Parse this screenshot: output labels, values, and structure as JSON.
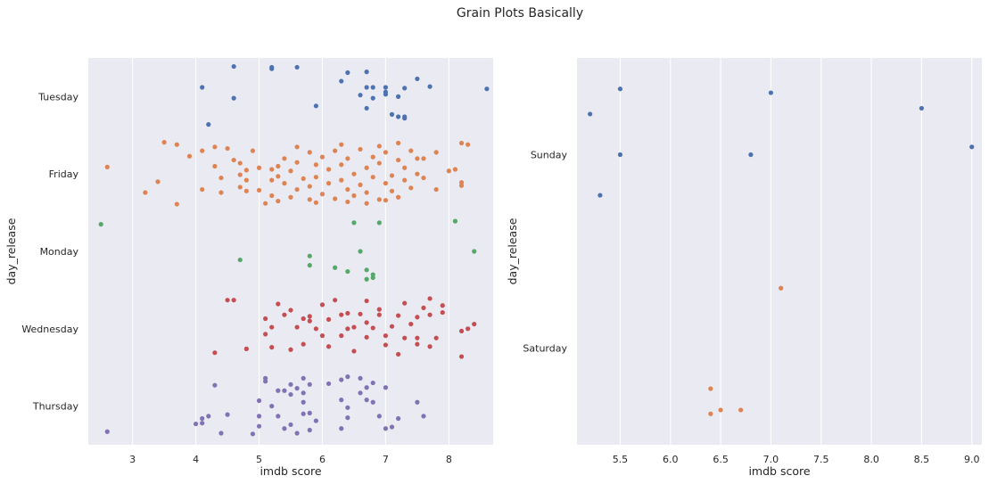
{
  "title": "Grain Plots Basically",
  "colors": {
    "background": "#ffffff",
    "panel": "#eaeaf2",
    "grid": "#ffffff",
    "text": "#262626",
    "blue": "#4c72b0",
    "orange": "#dd8452",
    "green": "#55a868",
    "red": "#c44e52",
    "purple": "#8172b3"
  },
  "chart_data": [
    {
      "type": "scatter",
      "style": "strip plot (horizontal, jittered)",
      "xlabel": "imdb score",
      "ylabel": "day_release",
      "xlim": [
        2.3,
        8.7
      ],
      "x_ticks": [
        3,
        4,
        5,
        6,
        7,
        8
      ],
      "categories": [
        "Tuesday",
        "Friday",
        "Monday",
        "Wednesday",
        "Thursday"
      ],
      "grid": "vertical",
      "series": [
        {
          "category": "Tuesday",
          "color": "#4c72b0",
          "points": [
            [
              4.6,
              -0.39
            ],
            [
              5.2,
              -0.38
            ],
            [
              5.2,
              -0.36
            ],
            [
              5.6,
              -0.38
            ],
            [
              6.4,
              -0.31
            ],
            [
              6.7,
              -0.32
            ],
            [
              7.5,
              -0.23
            ],
            [
              4.1,
              -0.12
            ],
            [
              6.3,
              -0.2
            ],
            [
              6.7,
              -0.12
            ],
            [
              6.8,
              -0.12
            ],
            [
              7.0,
              -0.12
            ],
            [
              7.3,
              -0.11
            ],
            [
              7.7,
              -0.13
            ],
            [
              8.6,
              -0.1
            ],
            [
              4.6,
              0.02
            ],
            [
              6.6,
              -0.02
            ],
            [
              6.8,
              0.02
            ],
            [
              7.0,
              -0.03
            ],
            [
              7.0,
              -0.06
            ],
            [
              7.2,
              0.0
            ],
            [
              5.9,
              0.12
            ],
            [
              6.7,
              0.15
            ],
            [
              7.1,
              0.23
            ],
            [
              7.2,
              0.26
            ],
            [
              7.3,
              0.26
            ],
            [
              7.3,
              0.28
            ],
            [
              4.2,
              0.36
            ]
          ]
        },
        {
          "category": "Friday",
          "color": "#dd8452",
          "points": [
            [
              3.5,
              -0.41
            ],
            [
              3.7,
              -0.38
            ],
            [
              3.9,
              -0.23
            ],
            [
              2.6,
              -0.09
            ],
            [
              4.1,
              -0.3
            ],
            [
              4.3,
              -0.35
            ],
            [
              4.5,
              -0.33
            ],
            [
              4.6,
              -0.18
            ],
            [
              4.7,
              -0.14
            ],
            [
              4.3,
              -0.1
            ],
            [
              4.7,
              0.01
            ],
            [
              4.4,
              0.05
            ],
            [
              4.8,
              0.08
            ],
            [
              4.1,
              0.2
            ],
            [
              4.4,
              0.24
            ],
            [
              4.7,
              0.17
            ],
            [
              4.8,
              0.22
            ],
            [
              4.8,
              -0.05
            ],
            [
              3.4,
              0.1
            ],
            [
              3.2,
              0.24
            ],
            [
              3.7,
              0.39
            ],
            [
              4.9,
              -0.3
            ],
            [
              5.0,
              -0.08
            ],
            [
              5.0,
              0.21
            ],
            [
              5.1,
              0.38
            ],
            [
              5.2,
              -0.06
            ],
            [
              5.2,
              0.08
            ],
            [
              5.2,
              0.28
            ],
            [
              5.3,
              -0.1
            ],
            [
              5.3,
              0.03
            ],
            [
              5.3,
              0.35
            ],
            [
              8.2,
              -0.4
            ],
            [
              8.3,
              -0.38
            ],
            [
              8.1,
              -0.06
            ],
            [
              8.0,
              -0.04
            ],
            [
              7.8,
              -0.28
            ],
            [
              7.8,
              0.2
            ],
            [
              8.2,
              0.11
            ],
            [
              8.2,
              0.15
            ],
            [
              7.6,
              0.05
            ],
            [
              7.6,
              -0.2
            ],
            [
              5.4,
              0.12
            ],
            [
              5.4,
              -0.2
            ],
            [
              5.5,
              0.3
            ],
            [
              5.5,
              -0.04
            ],
            [
              5.6,
              0.2
            ],
            [
              5.6,
              -0.15
            ],
            [
              5.7,
              0.06
            ],
            [
              5.8,
              -0.28
            ],
            [
              5.8,
              0.33
            ],
            [
              5.8,
              0.16
            ],
            [
              5.9,
              -0.12
            ],
            [
              5.9,
              0.04
            ],
            [
              6.0,
              0.26
            ],
            [
              6.0,
              -0.22
            ],
            [
              6.1,
              -0.06
            ],
            [
              6.1,
              0.12
            ],
            [
              6.2,
              0.32
            ],
            [
              6.2,
              -0.3
            ],
            [
              6.3,
              -0.12
            ],
            [
              6.3,
              0.08
            ],
            [
              6.4,
              0.2
            ],
            [
              6.4,
              -0.2
            ],
            [
              6.5,
              0.0
            ],
            [
              6.5,
              0.28
            ],
            [
              6.6,
              -0.32
            ],
            [
              6.6,
              0.14
            ],
            [
              6.7,
              -0.08
            ],
            [
              6.7,
              0.24
            ],
            [
              6.8,
              0.04
            ],
            [
              6.8,
              -0.22
            ],
            [
              6.9,
              0.33
            ],
            [
              6.9,
              -0.14
            ],
            [
              7.0,
              0.12
            ],
            [
              7.0,
              -0.28
            ],
            [
              7.1,
              0.02
            ],
            [
              7.1,
              0.22
            ],
            [
              7.2,
              -0.18
            ],
            [
              7.2,
              0.3
            ],
            [
              7.3,
              0.08
            ],
            [
              7.3,
              -0.08
            ],
            [
              7.4,
              -0.3
            ],
            [
              7.4,
              0.18
            ],
            [
              7.5,
              0.0
            ],
            [
              7.5,
              -0.2
            ],
            [
              5.6,
              -0.35
            ],
            [
              6.3,
              -0.38
            ],
            [
              6.9,
              -0.36
            ],
            [
              7.2,
              -0.4
            ],
            [
              5.9,
              0.37
            ],
            [
              6.4,
              0.36
            ],
            [
              6.7,
              0.38
            ],
            [
              7.0,
              0.34
            ]
          ]
        },
        {
          "category": "Monday",
          "color": "#55a868",
          "points": [
            [
              2.5,
              -0.35
            ],
            [
              6.5,
              -0.37
            ],
            [
              6.9,
              -0.37
            ],
            [
              8.1,
              -0.39
            ],
            [
              6.6,
              0.0
            ],
            [
              8.4,
              0.0
            ],
            [
              5.8,
              0.06
            ],
            [
              4.7,
              0.11
            ],
            [
              5.8,
              0.18
            ],
            [
              6.2,
              0.21
            ],
            [
              6.4,
              0.26
            ],
            [
              6.7,
              0.24
            ],
            [
              6.8,
              0.3
            ],
            [
              6.8,
              0.34
            ],
            [
              6.7,
              0.36
            ]
          ]
        },
        {
          "category": "Wednesday",
          "color": "#c44e52",
          "points": [
            [
              4.5,
              -0.37
            ],
            [
              4.6,
              -0.37
            ],
            [
              5.3,
              -0.32
            ],
            [
              5.5,
              -0.24
            ],
            [
              5.8,
              -0.16
            ],
            [
              6.0,
              -0.31
            ],
            [
              6.1,
              -0.12
            ],
            [
              6.2,
              -0.37
            ],
            [
              6.4,
              -0.2
            ],
            [
              6.7,
              -0.36
            ],
            [
              6.9,
              -0.25
            ],
            [
              7.3,
              -0.33
            ],
            [
              7.6,
              -0.27
            ],
            [
              7.7,
              -0.39
            ],
            [
              7.9,
              -0.3
            ],
            [
              5.1,
              -0.13
            ],
            [
              5.4,
              -0.18
            ],
            [
              5.7,
              -0.13
            ],
            [
              5.8,
              -0.1
            ],
            [
              6.3,
              -0.18
            ],
            [
              6.6,
              -0.19
            ],
            [
              6.9,
              -0.18
            ],
            [
              7.2,
              -0.17
            ],
            [
              7.5,
              -0.15
            ],
            [
              7.7,
              -0.18
            ],
            [
              5.2,
              -0.02
            ],
            [
              5.6,
              -0.02
            ],
            [
              5.9,
              0.0
            ],
            [
              6.5,
              -0.02
            ],
            [
              6.8,
              -0.01
            ],
            [
              7.1,
              -0.03
            ],
            [
              7.4,
              -0.06
            ],
            [
              8.3,
              0.0
            ],
            [
              8.4,
              -0.06
            ],
            [
              8.2,
              0.03
            ],
            [
              5.1,
              0.07
            ],
            [
              6.3,
              0.09
            ],
            [
              6.7,
              0.11
            ],
            [
              7.0,
              0.09
            ],
            [
              7.3,
              0.12
            ],
            [
              7.5,
              0.12
            ],
            [
              7.8,
              0.12
            ],
            [
              4.3,
              0.31
            ],
            [
              4.8,
              0.26
            ],
            [
              5.2,
              0.24
            ],
            [
              6.1,
              0.23
            ],
            [
              6.5,
              0.29
            ],
            [
              7.2,
              0.33
            ],
            [
              8.2,
              0.36
            ],
            [
              7.5,
              0.2
            ],
            [
              7.7,
              0.23
            ],
            [
              6.4,
              0.0
            ],
            [
              6.7,
              -0.08
            ],
            [
              5.7,
              0.2
            ],
            [
              7.9,
              -0.21
            ],
            [
              6.0,
              0.09
            ],
            [
              7.0,
              0.21
            ],
            [
              5.5,
              0.27
            ]
          ]
        },
        {
          "category": "Thursday",
          "color": "#8172b3",
          "points": [
            [
              5.1,
              -0.36
            ],
            [
              5.1,
              -0.32
            ],
            [
              5.7,
              -0.36
            ],
            [
              6.4,
              -0.38
            ],
            [
              6.6,
              -0.36
            ],
            [
              6.8,
              -0.3
            ],
            [
              6.3,
              -0.34
            ],
            [
              5.5,
              -0.28
            ],
            [
              4.3,
              -0.27
            ],
            [
              5.8,
              -0.28
            ],
            [
              6.1,
              -0.29
            ],
            [
              6.7,
              -0.24
            ],
            [
              6.6,
              -0.17
            ],
            [
              7.0,
              -0.24
            ],
            [
              5.3,
              -0.2
            ],
            [
              5.5,
              -0.15
            ],
            [
              5.4,
              -0.2
            ],
            [
              5.6,
              -0.23
            ],
            [
              5.7,
              -0.17
            ],
            [
              5.0,
              -0.07
            ],
            [
              5.7,
              -0.05
            ],
            [
              6.3,
              -0.08
            ],
            [
              6.7,
              -0.08
            ],
            [
              6.8,
              -0.05
            ],
            [
              7.5,
              -0.05
            ],
            [
              4.2,
              0.13
            ],
            [
              4.1,
              0.16
            ],
            [
              4.5,
              0.11
            ],
            [
              5.0,
              0.13
            ],
            [
              5.3,
              0.13
            ],
            [
              5.7,
              0.1
            ],
            [
              5.8,
              0.09
            ],
            [
              6.4,
              0.15
            ],
            [
              6.9,
              0.13
            ],
            [
              7.2,
              0.16
            ],
            [
              7.6,
              0.13
            ],
            [
              4.1,
              0.22
            ],
            [
              4.4,
              0.35
            ],
            [
              4.9,
              0.36
            ],
            [
              5.0,
              0.26
            ],
            [
              5.4,
              0.29
            ],
            [
              5.5,
              0.24
            ],
            [
              5.6,
              0.35
            ],
            [
              5.8,
              0.31
            ],
            [
              6.3,
              0.29
            ],
            [
              7.0,
              0.29
            ],
            [
              4.0,
              0.23
            ],
            [
              7.1,
              0.27
            ],
            [
              2.6,
              0.33
            ],
            [
              5.2,
              0.0
            ],
            [
              6.4,
              0.02
            ],
            [
              5.9,
              0.19
            ]
          ]
        }
      ]
    },
    {
      "type": "scatter",
      "style": "strip plot (horizontal, jittered)",
      "xlabel": "imdb score",
      "ylabel": "day_release",
      "xlim": [
        5.07,
        9.1
      ],
      "x_ticks": [
        5.5,
        6.0,
        6.5,
        7.0,
        7.5,
        8.0,
        8.5,
        9.0
      ],
      "x_tick_labels": [
        "5.5",
        "6.0",
        "6.5",
        "7.0",
        "7.5",
        "8.0",
        "8.5",
        "9.0"
      ],
      "categories": [
        "Sunday",
        "Saturday"
      ],
      "grid": "vertical",
      "series": [
        {
          "category": "Sunday",
          "color": "#4c72b0",
          "points": [
            [
              5.5,
              -0.34
            ],
            [
              7.0,
              -0.32
            ],
            [
              8.5,
              -0.24
            ],
            [
              5.2,
              -0.21
            ],
            [
              9.0,
              -0.04
            ],
            [
              5.5,
              0.0
            ],
            [
              6.8,
              0.0
            ],
            [
              5.3,
              0.21
            ]
          ]
        },
        {
          "category": "Saturday",
          "color": "#dd8452",
          "points": [
            [
              7.1,
              -0.31
            ],
            [
              6.4,
              0.21
            ],
            [
              6.7,
              0.32
            ],
            [
              6.5,
              0.32
            ],
            [
              6.4,
              0.34
            ]
          ]
        }
      ]
    }
  ]
}
